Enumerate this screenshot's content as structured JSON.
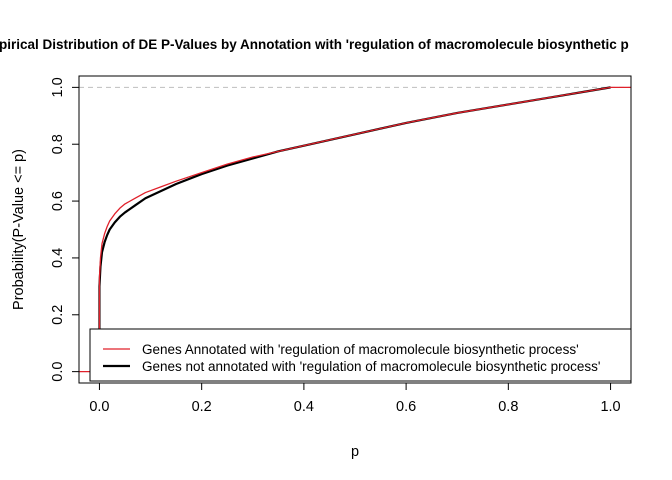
{
  "chart_data": {
    "type": "line",
    "title": "pirical Distribution of DE P-Values by Annotation with 'regulation of macromolecule biosynthetic p",
    "xlabel": "p",
    "ylabel": "Probability(P-Value <= p)",
    "xlim": [
      -0.04,
      1.04
    ],
    "ylim": [
      -0.04,
      1.04
    ],
    "xticks": [
      0.0,
      0.2,
      0.4,
      0.6,
      0.8,
      1.0
    ],
    "xtick_labels": [
      "0.0",
      "0.2",
      "0.4",
      "0.6",
      "0.8",
      "1.0"
    ],
    "yticks": [
      0.0,
      0.2,
      0.4,
      0.6,
      0.8,
      1.0
    ],
    "ytick_labels": [
      "0.0",
      "0.2",
      "0.4",
      "0.6",
      "0.8",
      "1.0"
    ],
    "reference_line": {
      "y": 1.0,
      "style": "dashed",
      "color": "#bebebe"
    },
    "legend_position": "bottom-right",
    "grid": false,
    "series": [
      {
        "name": "Genes Annotated with 'regulation of macromolecule biosynthetic process'",
        "color": "#e0202a",
        "stroke_width": 1.3,
        "x": [
          -0.04,
          0.0,
          0.0,
          0.002,
          0.005,
          0.01,
          0.015,
          0.02,
          0.03,
          0.04,
          0.05,
          0.07,
          0.09,
          0.12,
          0.15,
          0.2,
          0.25,
          0.3,
          0.35,
          0.4,
          0.5,
          0.6,
          0.7,
          0.8,
          0.9,
          0.95,
          1.0,
          1.04
        ],
        "values": [
          0.0,
          0.0,
          0.33,
          0.4,
          0.45,
          0.485,
          0.51,
          0.53,
          0.555,
          0.575,
          0.59,
          0.61,
          0.63,
          0.65,
          0.67,
          0.7,
          0.73,
          0.755,
          0.775,
          0.795,
          0.835,
          0.875,
          0.91,
          0.94,
          0.97,
          0.985,
          1.0,
          1.0
        ]
      },
      {
        "name": "Genes not annotated with 'regulation of macromolecule biosynthetic process'",
        "color": "#000000",
        "stroke_width": 2.2,
        "x": [
          0.0,
          0.0,
          0.002,
          0.005,
          0.01,
          0.015,
          0.02,
          0.03,
          0.04,
          0.05,
          0.07,
          0.09,
          0.12,
          0.15,
          0.2,
          0.25,
          0.3,
          0.35,
          0.4,
          0.5,
          0.6,
          0.7,
          0.8,
          0.9,
          0.95,
          1.0
        ],
        "values": [
          0.0,
          0.3,
          0.37,
          0.42,
          0.455,
          0.48,
          0.5,
          0.525,
          0.545,
          0.56,
          0.585,
          0.61,
          0.635,
          0.66,
          0.695,
          0.725,
          0.75,
          0.775,
          0.795,
          0.835,
          0.875,
          0.91,
          0.94,
          0.97,
          0.985,
          1.0
        ]
      }
    ]
  }
}
